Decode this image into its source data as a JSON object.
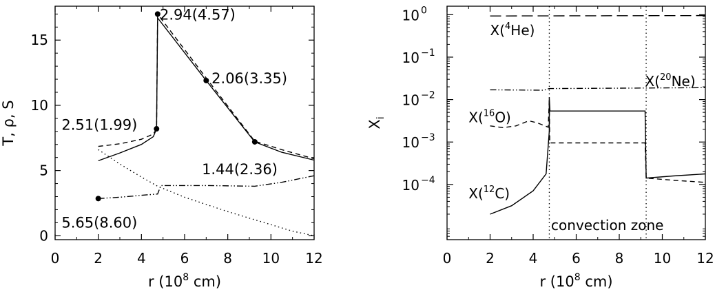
{
  "chart_data": [
    {
      "type": "line",
      "xlabel_prefix": "r (10",
      "xlabel_exp": "8",
      "xlabel_suffix": " cm)",
      "ylabel": "T, ρ, S",
      "xlim": [
        0,
        12
      ],
      "ylim": [
        -0.3,
        17.6
      ],
      "x_ticks": [
        "0",
        "2",
        "4",
        "6",
        "8",
        "10",
        "12"
      ],
      "y_ticks": [
        "0",
        "5",
        "10",
        "15"
      ],
      "series": [
        {
          "style": "solid",
          "points": [
            [
              2.0,
              5.75
            ],
            [
              3.0,
              6.35
            ],
            [
              4.0,
              7.0
            ],
            [
              4.55,
              7.6
            ],
            [
              4.7,
              8.2
            ],
            [
              4.75,
              16.7
            ],
            [
              7.0,
              11.9
            ],
            [
              9.25,
              7.2
            ],
            [
              10.5,
              6.4
            ],
            [
              12.0,
              5.8
            ]
          ]
        },
        {
          "style": "dashed",
          "points": [
            [
              2.0,
              6.85
            ],
            [
              3.0,
              7.05
            ],
            [
              4.0,
              7.4
            ],
            [
              4.55,
              7.8
            ],
            [
              4.7,
              8.2
            ],
            [
              4.75,
              17.0
            ],
            [
              7.0,
              12.1
            ],
            [
              9.25,
              7.25
            ],
            [
              10.5,
              6.6
            ],
            [
              12.0,
              5.9
            ]
          ]
        },
        {
          "style": "dotted",
          "points": [
            [
              2.0,
              6.6
            ],
            [
              3.0,
              5.5
            ],
            [
              4.0,
              4.5
            ],
            [
              4.75,
              3.8
            ],
            [
              6.0,
              2.95
            ],
            [
              8.0,
              1.85
            ],
            [
              10.0,
              0.85
            ],
            [
              11.0,
              0.35
            ],
            [
              12.0,
              0.0
            ]
          ]
        },
        {
          "style": "dashdotdot",
          "points": [
            [
              2.0,
              2.85
            ],
            [
              3.0,
              2.95
            ],
            [
              4.0,
              3.1
            ],
            [
              4.75,
              3.2
            ],
            [
              4.9,
              3.85
            ],
            [
              7.0,
              3.85
            ],
            [
              9.25,
              3.8
            ],
            [
              10.5,
              4.1
            ],
            [
              12.0,
              4.6
            ]
          ]
        }
      ],
      "markers": [
        [
          4.75,
          17.0
        ],
        [
          7.0,
          11.9
        ],
        [
          4.7,
          8.2
        ],
        [
          9.25,
          7.2
        ],
        [
          2.0,
          2.85
        ]
      ],
      "annotations": [
        {
          "text": "2.94(4.57)",
          "x": 4.85,
          "y": 17.0
        },
        {
          "text": "2.06(3.35)",
          "x": 7.25,
          "y": 12.1
        },
        {
          "text": "2.51(1.99)",
          "x": 0.3,
          "y": 8.55
        },
        {
          "text": "1.44(2.36)",
          "x": 6.8,
          "y": 5.15
        },
        {
          "text": "5.65(8.60)",
          "x": 0.3,
          "y": 1.05
        }
      ]
    },
    {
      "type": "line",
      "scale": "log",
      "xlabel_prefix": "r (10",
      "xlabel_exp": "8",
      "xlabel_suffix": " cm)",
      "ylabel": "X",
      "ylabel_sub": "i",
      "xlim": [
        0,
        12
      ],
      "ylog_range": [
        -5.3,
        0.2
      ],
      "x_ticks": [
        "0",
        "2",
        "4",
        "6",
        "8",
        "10",
        "12"
      ],
      "y_ticks": [
        {
          "base": "10",
          "exp": "0",
          "log": 0
        },
        {
          "base": "10",
          "exp": "−1",
          "log": -1
        },
        {
          "base": "10",
          "exp": "−2",
          "log": -2
        },
        {
          "base": "10",
          "exp": "−3",
          "log": -3
        },
        {
          "base": "10",
          "exp": "−4",
          "log": -4
        }
      ],
      "series": [
        {
          "name": "X(4He)",
          "style": "longdash",
          "points": [
            [
              2.0,
              -0.03
            ],
            [
              12.0,
              -0.02
            ]
          ]
        },
        {
          "name": "X(20Ne)",
          "style": "dashdotdot",
          "points": [
            [
              2.0,
              -1.77
            ],
            [
              4.5,
              -1.78
            ],
            [
              4.75,
              -1.74
            ],
            [
              12.0,
              -1.72
            ]
          ]
        },
        {
          "name": "X(16O)",
          "style": "dashed",
          "points": [
            [
              2.0,
              -2.62
            ],
            [
              2.6,
              -2.66
            ],
            [
              3.2,
              -2.62
            ],
            [
              3.8,
              -2.5
            ],
            [
              4.2,
              -2.55
            ],
            [
              4.7,
              -2.65
            ],
            [
              4.75,
              -2.0
            ],
            [
              4.77,
              -3.02
            ],
            [
              9.2,
              -3.02
            ],
            [
              9.25,
              -3.85
            ],
            [
              10.5,
              -3.9
            ],
            [
              12.0,
              -3.95
            ]
          ]
        },
        {
          "name": "X(12C)",
          "style": "solid",
          "points": [
            [
              2.0,
              -4.7
            ],
            [
              3.0,
              -4.5
            ],
            [
              4.0,
              -4.15
            ],
            [
              4.6,
              -3.75
            ],
            [
              4.75,
              -2.75
            ],
            [
              4.75,
              -1.95
            ],
            [
              4.78,
              -2.27
            ],
            [
              9.2,
              -2.27
            ],
            [
              9.25,
              -3.85
            ],
            [
              10.5,
              -3.8
            ],
            [
              12.0,
              -3.75
            ]
          ]
        }
      ],
      "vlines": [
        4.75,
        9.25
      ],
      "annotations": [
        {
          "label": "X(",
          "sup": "4",
          "tail": "He)",
          "x": 2.0,
          "logy": -0.35
        },
        {
          "label": "X(",
          "sup": "20",
          "tail": "Ne)",
          "x": 9.2,
          "logy": -1.55
        },
        {
          "label": "X(",
          "sup": "16",
          "tail": "O)",
          "x": 1.0,
          "logy": -2.4
        },
        {
          "label": "X(",
          "sup": "12",
          "tail": "C)",
          "x": 1.0,
          "logy": -4.2
        }
      ],
      "region_label": "convection zone"
    }
  ]
}
